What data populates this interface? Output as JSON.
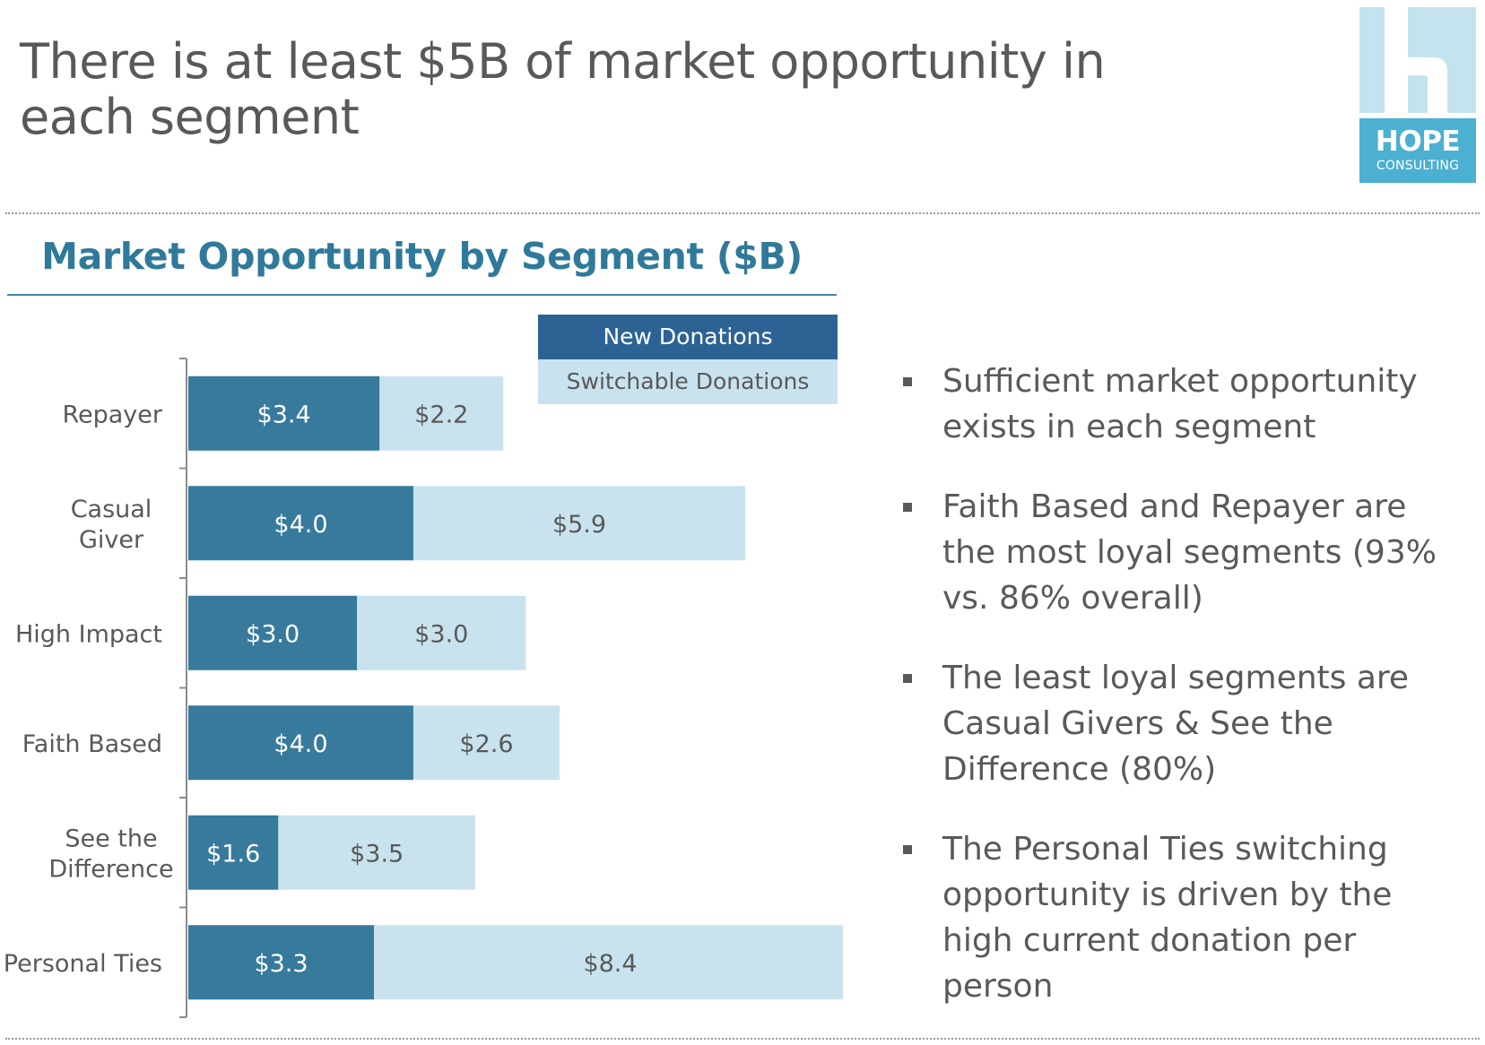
{
  "slide": {
    "title": "There is at least $5B of market opportunity in each segment"
  },
  "logo": {
    "name": "HOPE",
    "subtitle": "CONSULTING",
    "colors": {
      "light": "#c5e3ef",
      "box": "#4bb0d2"
    }
  },
  "chart_data": {
    "type": "bar",
    "orientation": "horizontal",
    "stacked": true,
    "title": "Market Opportunity by Segment ($B)",
    "categories": [
      "Repayer",
      "Casual Giver",
      "High Impact",
      "Faith Based",
      "See the Difference",
      "Personal Ties"
    ],
    "category_label_lines": [
      [
        "Repayer"
      ],
      [
        "Casual",
        "Giver"
      ],
      [
        "High Impact"
      ],
      [
        "Faith Based"
      ],
      [
        "See the",
        "Difference"
      ],
      [
        "Personal Ties"
      ]
    ],
    "series": [
      {
        "name": "New Donations",
        "values": [
          3.4,
          4.0,
          3.0,
          4.0,
          1.6,
          3.3
        ],
        "labels": [
          "$3.4",
          "$4.0",
          "$3.0",
          "$4.0",
          "$1.6",
          "$3.3"
        ],
        "color": "#377a9c"
      },
      {
        "name": "Switchable Donations",
        "values": [
          2.2,
          5.9,
          3.0,
          2.6,
          3.5,
          8.4
        ],
        "labels": [
          "$2.2",
          "$5.9",
          "$3.0",
          "$2.6",
          "$3.5",
          "$8.4"
        ],
        "color": "#c8e3ee"
      }
    ],
    "xlim": [
      0,
      11.7
    ],
    "xaxis_visible": false,
    "grid": false,
    "legend_placement": "top-right"
  },
  "legend": {
    "new_label": "New Donations",
    "switch_label": "Switchable Donations",
    "new_color": "#2c6394",
    "switch_color": "#c8e3ee"
  },
  "bullets": [
    "Sufficient market opportunity exists in each segment",
    "Faith Based and Repayer are the most loyal segments (93% vs. 86% overall)",
    "The least loyal segments are Casual Givers & See the Difference (80%)",
    "The Personal Ties switching opportunity is driven by the high current donation per person"
  ]
}
